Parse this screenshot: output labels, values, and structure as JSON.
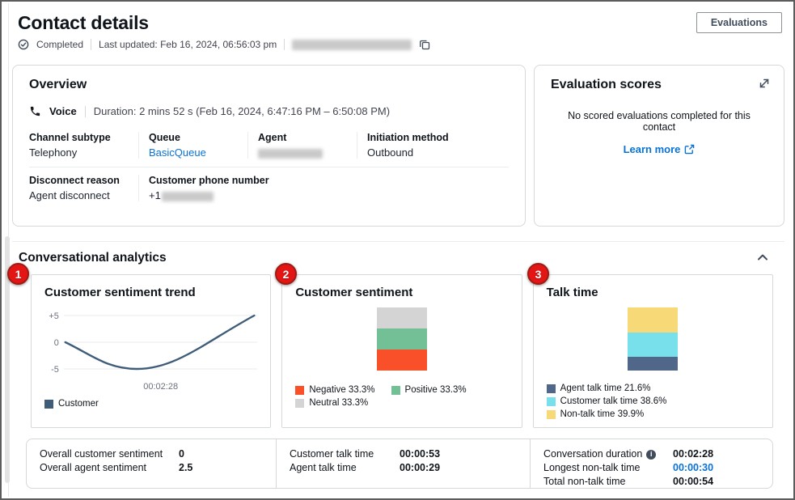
{
  "page": {
    "title": "Contact details"
  },
  "header": {
    "status": "Completed",
    "last_updated": "Last updated: Feb 16, 2024, 06:56:03 pm",
    "contact_id_redacted": true,
    "evaluations_button": "Evaluations"
  },
  "overview": {
    "title": "Overview",
    "channel_label": "Voice",
    "duration": "Duration: 2 mins 52 s (Feb 16, 2024, 6:47:16 PM – 6:50:08 PM)",
    "fields_row1": [
      {
        "label": "Channel subtype",
        "value": "Telephony",
        "type": "text"
      },
      {
        "label": "Queue",
        "value": "BasicQueue",
        "type": "link"
      },
      {
        "label": "Agent",
        "value": "",
        "type": "redacted"
      },
      {
        "label": "Initiation method",
        "value": "Outbound",
        "type": "text"
      }
    ],
    "fields_row2": [
      {
        "label": "Disconnect reason",
        "value": "Agent disconnect",
        "type": "text"
      },
      {
        "label": "Customer phone number",
        "value": "+1",
        "type": "prefix-redacted"
      }
    ]
  },
  "evaluation": {
    "title": "Evaluation scores",
    "empty_message": "No scored evaluations completed for this contact",
    "learn_more": "Learn more"
  },
  "analytics": {
    "title": "Conversational analytics",
    "badges": [
      "1",
      "2",
      "3"
    ]
  },
  "chart_data": [
    {
      "type": "line",
      "title": "Customer sentiment trend",
      "series": [
        {
          "name": "Customer",
          "color": "#3f5c78",
          "points": [
            {
              "t": 0.0,
              "v": 0
            },
            {
              "t": 0.38,
              "v": -5
            },
            {
              "t": 1.0,
              "v": 5
            }
          ]
        }
      ],
      "ylim": [
        -5,
        5
      ],
      "yticks": [
        {
          "label": "+5",
          "v": 5
        },
        {
          "label": "0",
          "v": 0
        },
        {
          "label": "-5",
          "v": -5
        }
      ],
      "xtick": "00:02:28",
      "grid": true,
      "legend_position": "bottom-left"
    },
    {
      "type": "stacked-bar",
      "title": "Customer sentiment",
      "stack_order": "bottom-up",
      "segments": [
        {
          "name": "Negative",
          "pct": 33.3,
          "color": "#fa5029"
        },
        {
          "name": "Positive",
          "pct": 33.3,
          "color": "#73bf96"
        },
        {
          "name": "Neutral",
          "pct": 33.3,
          "color": "#d4d4d4"
        }
      ]
    },
    {
      "type": "stacked-bar",
      "title": "Talk time",
      "stack_order": "bottom-up",
      "segments": [
        {
          "name": "Agent talk time",
          "pct": 21.6,
          "color": "#51678a"
        },
        {
          "name": "Customer talk time",
          "pct": 38.6,
          "color": "#77e0ea"
        },
        {
          "name": "Non-talk time",
          "pct": 39.9,
          "color": "#f8d977"
        }
      ]
    }
  ],
  "summary": {
    "columns": [
      {
        "rows": [
          {
            "label": "Overall customer sentiment",
            "value": "0"
          },
          {
            "label": "Overall agent sentiment",
            "value": "2.5"
          }
        ]
      },
      {
        "rows": [
          {
            "label": "Customer talk time",
            "value": "00:00:53"
          },
          {
            "label": "Agent talk time",
            "value": "00:00:29"
          }
        ]
      },
      {
        "rows": [
          {
            "label": "Conversation duration",
            "value": "00:02:28",
            "info_icon": true
          },
          {
            "label": "Longest non-talk time",
            "value": "00:00:30",
            "link": true
          },
          {
            "label": "Total non-talk time",
            "value": "00:00:54"
          }
        ]
      }
    ]
  },
  "colors": {
    "link": "#0972d3",
    "badge": "#e31515",
    "trend_line": "#3f5c78"
  },
  "icons": {
    "status": "check-circle-icon",
    "copy": "copy-icon",
    "voice": "phone-icon",
    "expand": "expand-diagonal-icon",
    "external": "external-link-icon",
    "collapse": "chevron-up-icon",
    "info": "info-icon"
  }
}
